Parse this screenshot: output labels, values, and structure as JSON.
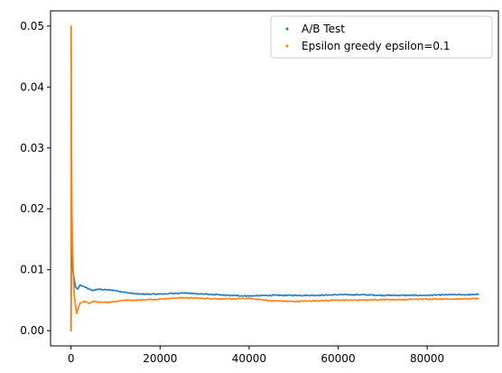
{
  "chart_data": {
    "type": "scatter",
    "title": "",
    "xlabel": "",
    "ylabel": "",
    "xlim": [
      -4600,
      96000
    ],
    "ylim": [
      -0.0025,
      0.0525
    ],
    "xticks": [
      0,
      20000,
      40000,
      60000,
      80000
    ],
    "xtick_labels": [
      "0",
      "20000",
      "40000",
      "60000",
      "80000"
    ],
    "yticks": [
      0.0,
      0.01,
      0.02,
      0.03,
      0.04,
      0.05
    ],
    "ytick_labels": [
      "0.00",
      "0.01",
      "0.02",
      "0.03",
      "0.04",
      "0.05"
    ],
    "grid": false,
    "legend_position": "top-right",
    "series": [
      {
        "name": "A/B Test",
        "color": "#1f77b4",
        "points": [
          [
            0,
            0.0
          ],
          [
            100,
            0.016
          ],
          [
            200,
            0.012
          ],
          [
            300,
            0.0105
          ],
          [
            500,
            0.0095
          ],
          [
            700,
            0.0085
          ],
          [
            1000,
            0.0072
          ],
          [
            1500,
            0.0068
          ],
          [
            2000,
            0.0075
          ],
          [
            3000,
            0.0072
          ],
          [
            4000,
            0.0068
          ],
          [
            5000,
            0.0066
          ],
          [
            6000,
            0.0068
          ],
          [
            8000,
            0.0067
          ],
          [
            10000,
            0.0066
          ],
          [
            12000,
            0.0063
          ],
          [
            15000,
            0.006
          ],
          [
            18000,
            0.006
          ],
          [
            20000,
            0.006
          ],
          [
            25000,
            0.0062
          ],
          [
            30000,
            0.006
          ],
          [
            35000,
            0.0058
          ],
          [
            40000,
            0.0057
          ],
          [
            45000,
            0.0058
          ],
          [
            50000,
            0.0058
          ],
          [
            55000,
            0.0058
          ],
          [
            60000,
            0.0059
          ],
          [
            65000,
            0.0059
          ],
          [
            70000,
            0.0058
          ],
          [
            75000,
            0.0058
          ],
          [
            80000,
            0.0058
          ],
          [
            85000,
            0.0059
          ],
          [
            90000,
            0.0059
          ],
          [
            91500,
            0.006
          ]
        ]
      },
      {
        "name": "Epsilon greedy epsilon=0.1",
        "color": "#ff7f0e",
        "points": [
          [
            0,
            0.0
          ],
          [
            20,
            0.05
          ],
          [
            40,
            0.045
          ],
          [
            60,
            0.04
          ],
          [
            80,
            0.035
          ],
          [
            100,
            0.03
          ],
          [
            150,
            0.025
          ],
          [
            200,
            0.02
          ],
          [
            300,
            0.015
          ],
          [
            500,
            0.01
          ],
          [
            700,
            0.006
          ],
          [
            1000,
            0.0042
          ],
          [
            1300,
            0.0028
          ],
          [
            1500,
            0.0035
          ],
          [
            2000,
            0.0045
          ],
          [
            3000,
            0.0048
          ],
          [
            4000,
            0.0045
          ],
          [
            5000,
            0.0048
          ],
          [
            7000,
            0.0046
          ],
          [
            10000,
            0.0048
          ],
          [
            12000,
            0.005
          ],
          [
            15000,
            0.005
          ],
          [
            20000,
            0.0052
          ],
          [
            25000,
            0.0054
          ],
          [
            30000,
            0.0053
          ],
          [
            35000,
            0.0052
          ],
          [
            40000,
            0.0053
          ],
          [
            45000,
            0.0049
          ],
          [
            50000,
            0.0048
          ],
          [
            55000,
            0.0049
          ],
          [
            60000,
            0.005
          ],
          [
            65000,
            0.005
          ],
          [
            70000,
            0.0051
          ],
          [
            75000,
            0.0051
          ],
          [
            80000,
            0.0052
          ],
          [
            85000,
            0.0052
          ],
          [
            90000,
            0.0052
          ],
          [
            91500,
            0.0053
          ]
        ]
      }
    ]
  }
}
